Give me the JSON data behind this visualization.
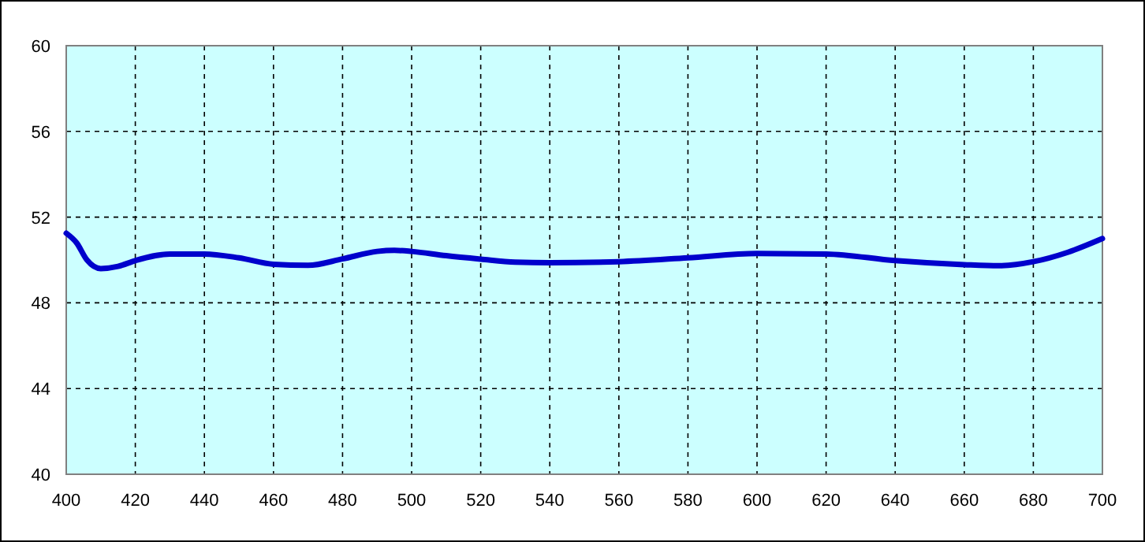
{
  "chart_data": {
    "type": "line",
    "x": [
      400,
      403,
      406,
      410,
      415,
      420,
      430,
      440,
      450,
      460,
      470,
      480,
      490,
      495,
      500,
      510,
      520,
      530,
      540,
      560,
      580,
      600,
      620,
      640,
      660,
      670,
      680,
      690,
      700
    ],
    "series": [
      {
        "color": "#0000cc",
        "values": [
          51.25,
          50.8,
          50.0,
          49.6,
          49.7,
          49.97,
          50.28,
          50.28,
          50.1,
          49.8,
          49.75,
          50.05,
          50.4,
          50.45,
          50.4,
          50.2,
          50.04,
          49.9,
          49.87,
          49.92,
          50.1,
          50.3,
          50.28,
          49.97,
          49.78,
          49.73,
          49.92,
          50.36,
          51.0
        ]
      }
    ],
    "xlim": [
      400,
      700
    ],
    "xticks": [
      400,
      420,
      440,
      460,
      480,
      500,
      520,
      540,
      560,
      580,
      600,
      620,
      640,
      660,
      680,
      700
    ],
    "ylim": [
      40,
      60
    ],
    "yticks": [
      40,
      44,
      48,
      52,
      56,
      60
    ],
    "grid": true,
    "line_style": "solid",
    "marker": "none"
  }
}
